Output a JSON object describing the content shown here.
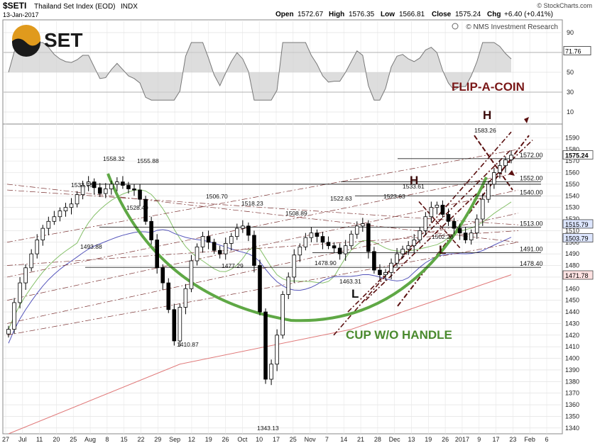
{
  "header": {
    "symbol": "$SETI",
    "name": "Thailand Set Index (EOD)",
    "exchange": "INDX",
    "source": "© StockCharts.com",
    "date": "13-Jan-2017",
    "open_label": "Open",
    "open": "1572.67",
    "high_label": "High",
    "high": "1576.35",
    "low_label": "Low",
    "low": "1566.81",
    "close_label": "Close",
    "close": "1575.24",
    "chg_label": "Chg",
    "chg": "+6.40 (+0.41%)",
    "credit": "© NMS Investment Research",
    "logo_text": "SET"
  },
  "rsi_panel": {
    "ticks": [
      "90",
      "70",
      "50",
      "30",
      "10"
    ],
    "last_value": "71.76"
  },
  "annotations": {
    "flip": "FLIP-A-COIN",
    "cup": "CUP W/O HANDLE",
    "h1": "H",
    "h2": "H",
    "l1": "L",
    "l2": "L"
  },
  "colors": {
    "up_candle": "#ffffff",
    "down_candle": "#000000",
    "cup_curve": "#5fa845",
    "flip_text": "#7a1818",
    "cup_text": "#4a8a2e",
    "trend_dark": "#5a0f0f",
    "ma_green": "#86c06a",
    "ma_blue": "#5555bb",
    "ma_red": "#e07a7a",
    "grid": "#dddddd"
  },
  "chart_data": {
    "type": "candlestick",
    "title": "$SETI Thailand Set Index (EOD) INDX",
    "ylim": [
      1335,
      1600
    ],
    "y_ticks": [
      1340,
      1350,
      1360,
      1370,
      1380,
      1390,
      1400,
      1410,
      1420,
      1430,
      1440,
      1450,
      1460,
      1470,
      1480,
      1490,
      1500,
      1510,
      1520,
      1530,
      1540,
      1550,
      1560,
      1570,
      1580,
      1590
    ],
    "x_tick_labels": [
      "27",
      "Jul",
      "11",
      "20",
      "25",
      "Aug",
      "8",
      "15",
      "22",
      "29",
      "Sep",
      "12",
      "19",
      "26",
      "Oct",
      "10",
      "17",
      "25",
      "Nov",
      "7",
      "14",
      "21",
      "28",
      "Dec",
      "13",
      "19",
      "26",
      "2017",
      "9",
      "17",
      "23",
      "Feb",
      "6"
    ],
    "right_axis_badges": [
      "1575.24",
      "1515.79",
      "1503.79",
      "1471.78"
    ],
    "horizontal_levels": [
      "1572.00",
      "1552.00",
      "1540.00",
      "1513.00",
      "1491.00",
      "1478.40"
    ],
    "price_labels": [
      "1533.75",
      "1558.32",
      "1555.88",
      "1528.40",
      "1493.88",
      "1506.70",
      "1518.23",
      "1508.89",
      "1477.29",
      "1522.63",
      "1478.90",
      "1523.63",
      "1533.61",
      "1463.31",
      "1502.28",
      "1583.26",
      "1410.87",
      "1343.13"
    ],
    "closes": [
      1425,
      1448,
      1465,
      1478,
      1490,
      1502,
      1512,
      1518,
      1522,
      1527,
      1530,
      1533,
      1541,
      1549,
      1552,
      1547,
      1542,
      1546,
      1550,
      1552,
      1549,
      1546,
      1545,
      1537,
      1518,
      1502,
      1478,
      1465,
      1442,
      1415,
      1444,
      1460,
      1484,
      1496,
      1505,
      1500,
      1493,
      1490,
      1499,
      1505,
      1512,
      1514,
      1506,
      1480,
      1440,
      1382,
      1395,
      1420,
      1455,
      1470,
      1489,
      1496,
      1504,
      1508,
      1505,
      1500,
      1497,
      1495,
      1490,
      1497,
      1507,
      1514,
      1516,
      1492,
      1476,
      1472,
      1474,
      1482,
      1490,
      1494,
      1497,
      1502,
      1510,
      1522,
      1530,
      1532,
      1524,
      1518,
      1512,
      1508,
      1502,
      1508,
      1520,
      1537,
      1550,
      1560,
      1566,
      1571,
      1575
    ]
  }
}
